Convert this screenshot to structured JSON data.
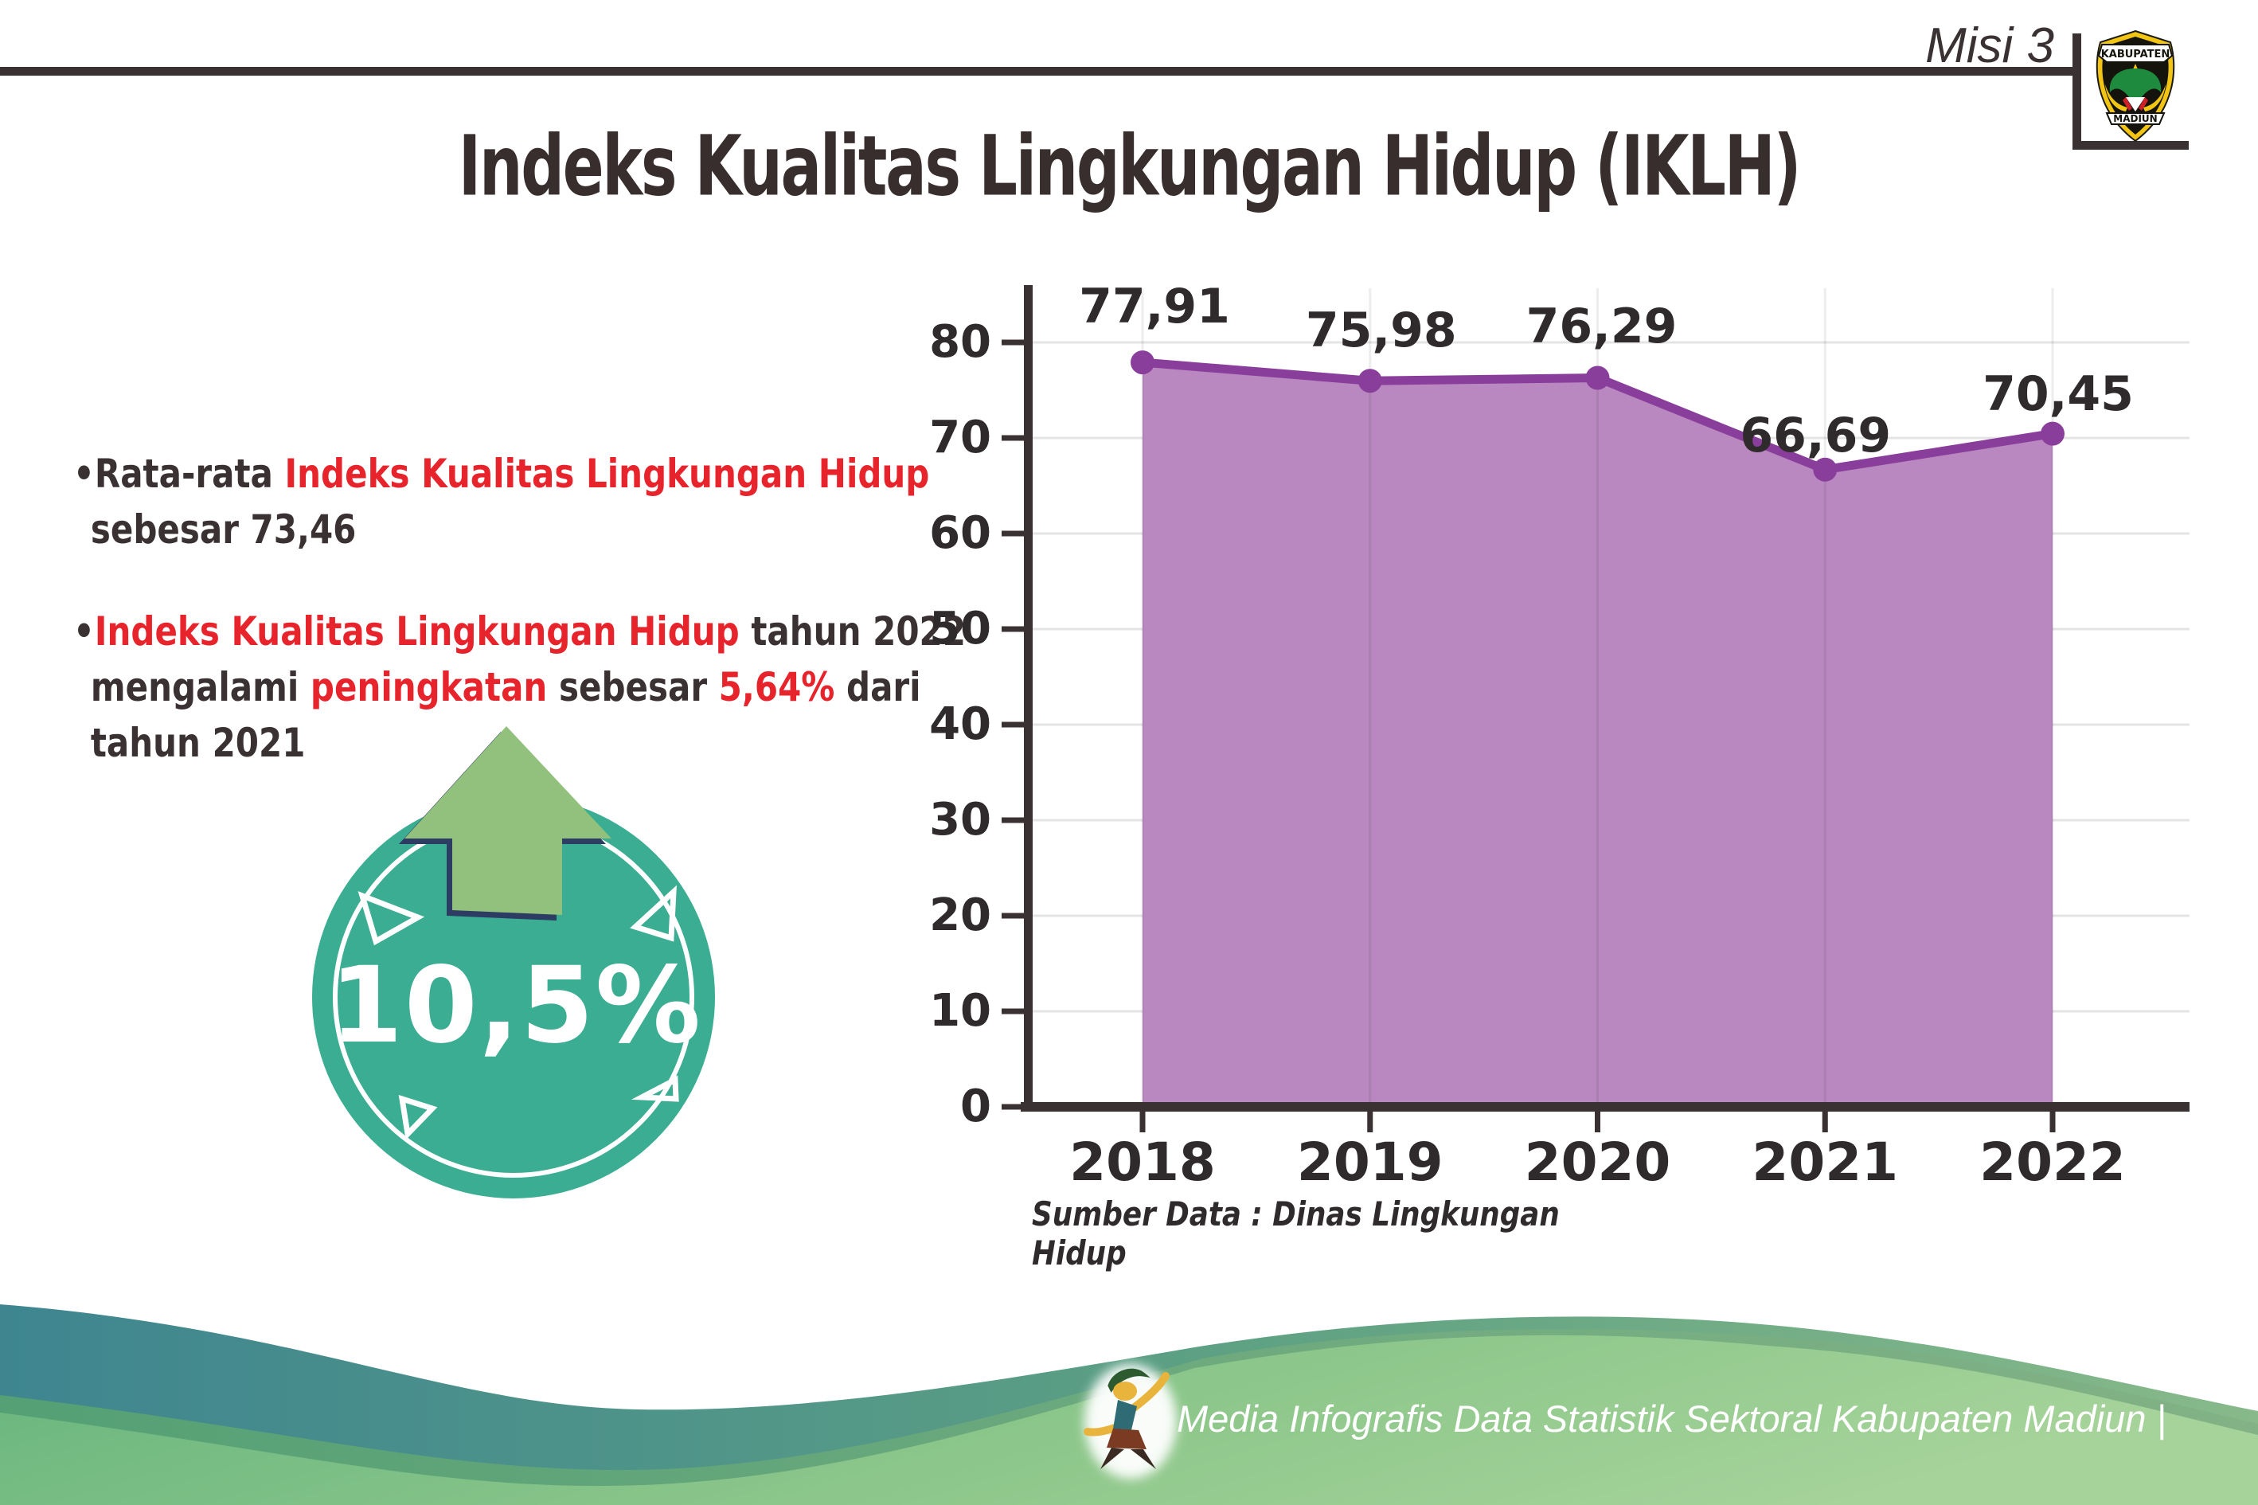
{
  "header": {
    "misi_label": "Misi 3",
    "title": "Indeks Kualitas Lingkungan Hidup (IKLH)"
  },
  "logo": {
    "name": "kabupaten-madiun-seal",
    "top_text": "KABUPATEN",
    "bottom_text": "MADIUN"
  },
  "bullets": {
    "b1_prefix": "Rata-rata ",
    "b1_highlight": "Indeks Kualitas Lingkungan Hidup",
    "b1_line2": "sebesar 73,46",
    "b2_highlight1": "Indeks Kualitas Lingkungan Hidup",
    "b2_text1": " tahun 2022",
    "b2_text2": "mengalami ",
    "b2_highlight2": "peningkatan",
    "b2_text3": " sebesar ",
    "b2_highlight3": "5,64%",
    "b2_text4": " dari",
    "b2_line3": "tahun 2021"
  },
  "badge": {
    "value": "10,5%",
    "meaning": "kenaikan"
  },
  "chart_data": {
    "type": "area",
    "categories": [
      "2018",
      "2019",
      "2020",
      "2021",
      "2022"
    ],
    "values": [
      77.91,
      75.98,
      76.29,
      66.69,
      70.45
    ],
    "value_labels": [
      "77,91",
      "75,98",
      "76,29",
      "66,69",
      "70,45"
    ],
    "title": "",
    "xlabel": "",
    "ylabel": "",
    "ylim": [
      0,
      85
    ],
    "y_ticks": [
      80,
      70,
      60,
      50,
      40,
      30,
      20,
      10,
      0
    ],
    "grid": true,
    "legend": false,
    "source_note": "Sumber Data : Dinas Lingkungan Hidup"
  },
  "footer": {
    "text": "Media Infografis Data Statistik Sektoral Kabupaten Madiun |"
  },
  "colors": {
    "dark_text": "#3a3132",
    "highlight_red": "#e7232b",
    "badge_teal": "#3aad92",
    "arrow_green": "#92c17d",
    "arrow_outline_navy": "#2c3c63",
    "area_fill_purple": "#b988c0",
    "line_purple": "#8a3e9b",
    "gridline": "#e4e4e4",
    "footer_teal": "#3e8590",
    "footer_green": "#8ec78b",
    "footer_stripe_green": "#63a97b"
  }
}
